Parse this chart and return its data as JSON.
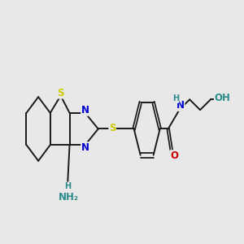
{
  "background_color": "#e8e8e8",
  "fig_width": 3.0,
  "fig_height": 3.0,
  "dpi": 100,
  "bond_color": "#1a1a1a",
  "bond_lw": 1.4,
  "S1_color": "#cccc00",
  "S2_color": "#cccc00",
  "N_color": "#0000cc",
  "NH2_color": "#2e8b8b",
  "H_color": "#2e8b8b",
  "NH_color": "#0000cc",
  "O_color": "#cc0000",
  "OH_color": "#2e8b8b",
  "xlim": [
    0.0,
    6.5
  ],
  "ylim": [
    0.4,
    3.2
  ]
}
